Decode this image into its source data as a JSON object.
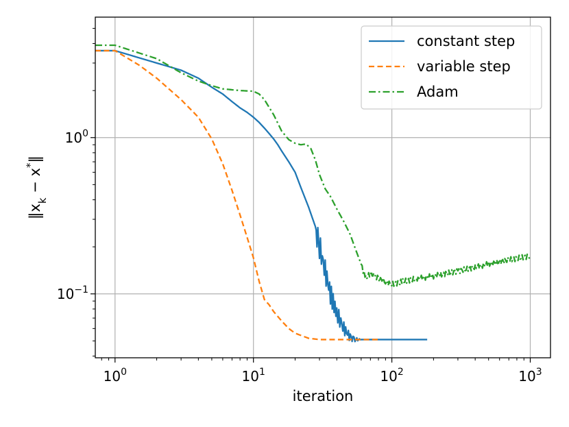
{
  "chart_data": {
    "type": "line",
    "title": "",
    "xlabel": "iteration",
    "ylabel": "‖x_k − x*‖",
    "xscale": "log",
    "yscale": "log",
    "xlim": [
      0.72,
      1400
    ],
    "ylim": [
      0.039,
      5.9
    ],
    "grid": true,
    "legend_position": "top-right",
    "x_ticks": [
      {
        "base": "10",
        "exp": "0"
      },
      {
        "base": "10",
        "exp": "1"
      },
      {
        "base": "10",
        "exp": "2"
      },
      {
        "base": "10",
        "exp": "3"
      }
    ],
    "y_ticks": [
      {
        "base": "10",
        "exp": "0"
      },
      {
        "base": "10",
        "exp": "−1"
      }
    ],
    "series": [
      {
        "name": "constant step",
        "color": "#1f77b4",
        "style": "solid",
        "x": [
          0.72,
          1,
          2,
          3,
          4,
          5,
          6,
          7,
          8,
          9,
          10,
          11,
          12,
          13,
          14,
          15,
          16,
          18,
          20,
          22,
          25,
          28,
          30,
          33,
          36,
          40,
          45,
          50,
          55,
          60,
          70,
          80,
          100,
          180
        ],
        "y": [
          3.6,
          3.6,
          3.0,
          2.7,
          2.4,
          2.1,
          1.9,
          1.7,
          1.55,
          1.45,
          1.35,
          1.25,
          1.15,
          1.06,
          0.98,
          0.9,
          0.82,
          0.7,
          0.6,
          0.48,
          0.36,
          0.27,
          0.2,
          0.14,
          0.1,
          0.075,
          0.06,
          0.053,
          0.051,
          0.051,
          0.051,
          0.051,
          0.051,
          0.051
        ]
      },
      {
        "name": "variable step",
        "color": "#ff7f0e",
        "style": "dashed",
        "x": [
          0.72,
          1,
          1.5,
          2,
          3,
          4,
          5,
          6,
          7,
          8,
          9,
          10,
          11,
          12,
          13,
          14,
          16,
          18,
          20,
          25,
          30,
          40,
          50,
          60,
          80
        ],
        "y": [
          3.6,
          3.6,
          2.9,
          2.4,
          1.75,
          1.35,
          0.98,
          0.68,
          0.46,
          0.32,
          0.23,
          0.17,
          0.12,
          0.092,
          0.085,
          0.077,
          0.067,
          0.06,
          0.056,
          0.052,
          0.051,
          0.051,
          0.051,
          0.051,
          0.051
        ]
      },
      {
        "name": "Adam",
        "color": "#2ca02c",
        "style": "dashdot",
        "x": [
          0.72,
          1,
          2,
          3,
          4,
          5,
          6,
          8,
          10,
          11,
          12,
          14,
          16,
          18,
          20,
          22,
          24,
          26,
          28,
          30,
          33,
          36,
          40,
          45,
          50,
          55,
          60,
          63,
          66,
          70,
          75,
          80,
          90,
          100,
          120,
          150,
          200,
          300,
          500,
          700,
          1000
        ],
        "y": [
          3.9,
          3.9,
          3.2,
          2.6,
          2.3,
          2.15,
          2.05,
          2.0,
          1.98,
          1.9,
          1.75,
          1.4,
          1.1,
          0.97,
          0.92,
          0.9,
          0.91,
          0.85,
          0.72,
          0.58,
          0.47,
          0.42,
          0.35,
          0.29,
          0.24,
          0.19,
          0.155,
          0.135,
          0.128,
          0.135,
          0.13,
          0.125,
          0.12,
          0.115,
          0.12,
          0.125,
          0.13,
          0.14,
          0.155,
          0.165,
          0.175
        ]
      }
    ]
  }
}
